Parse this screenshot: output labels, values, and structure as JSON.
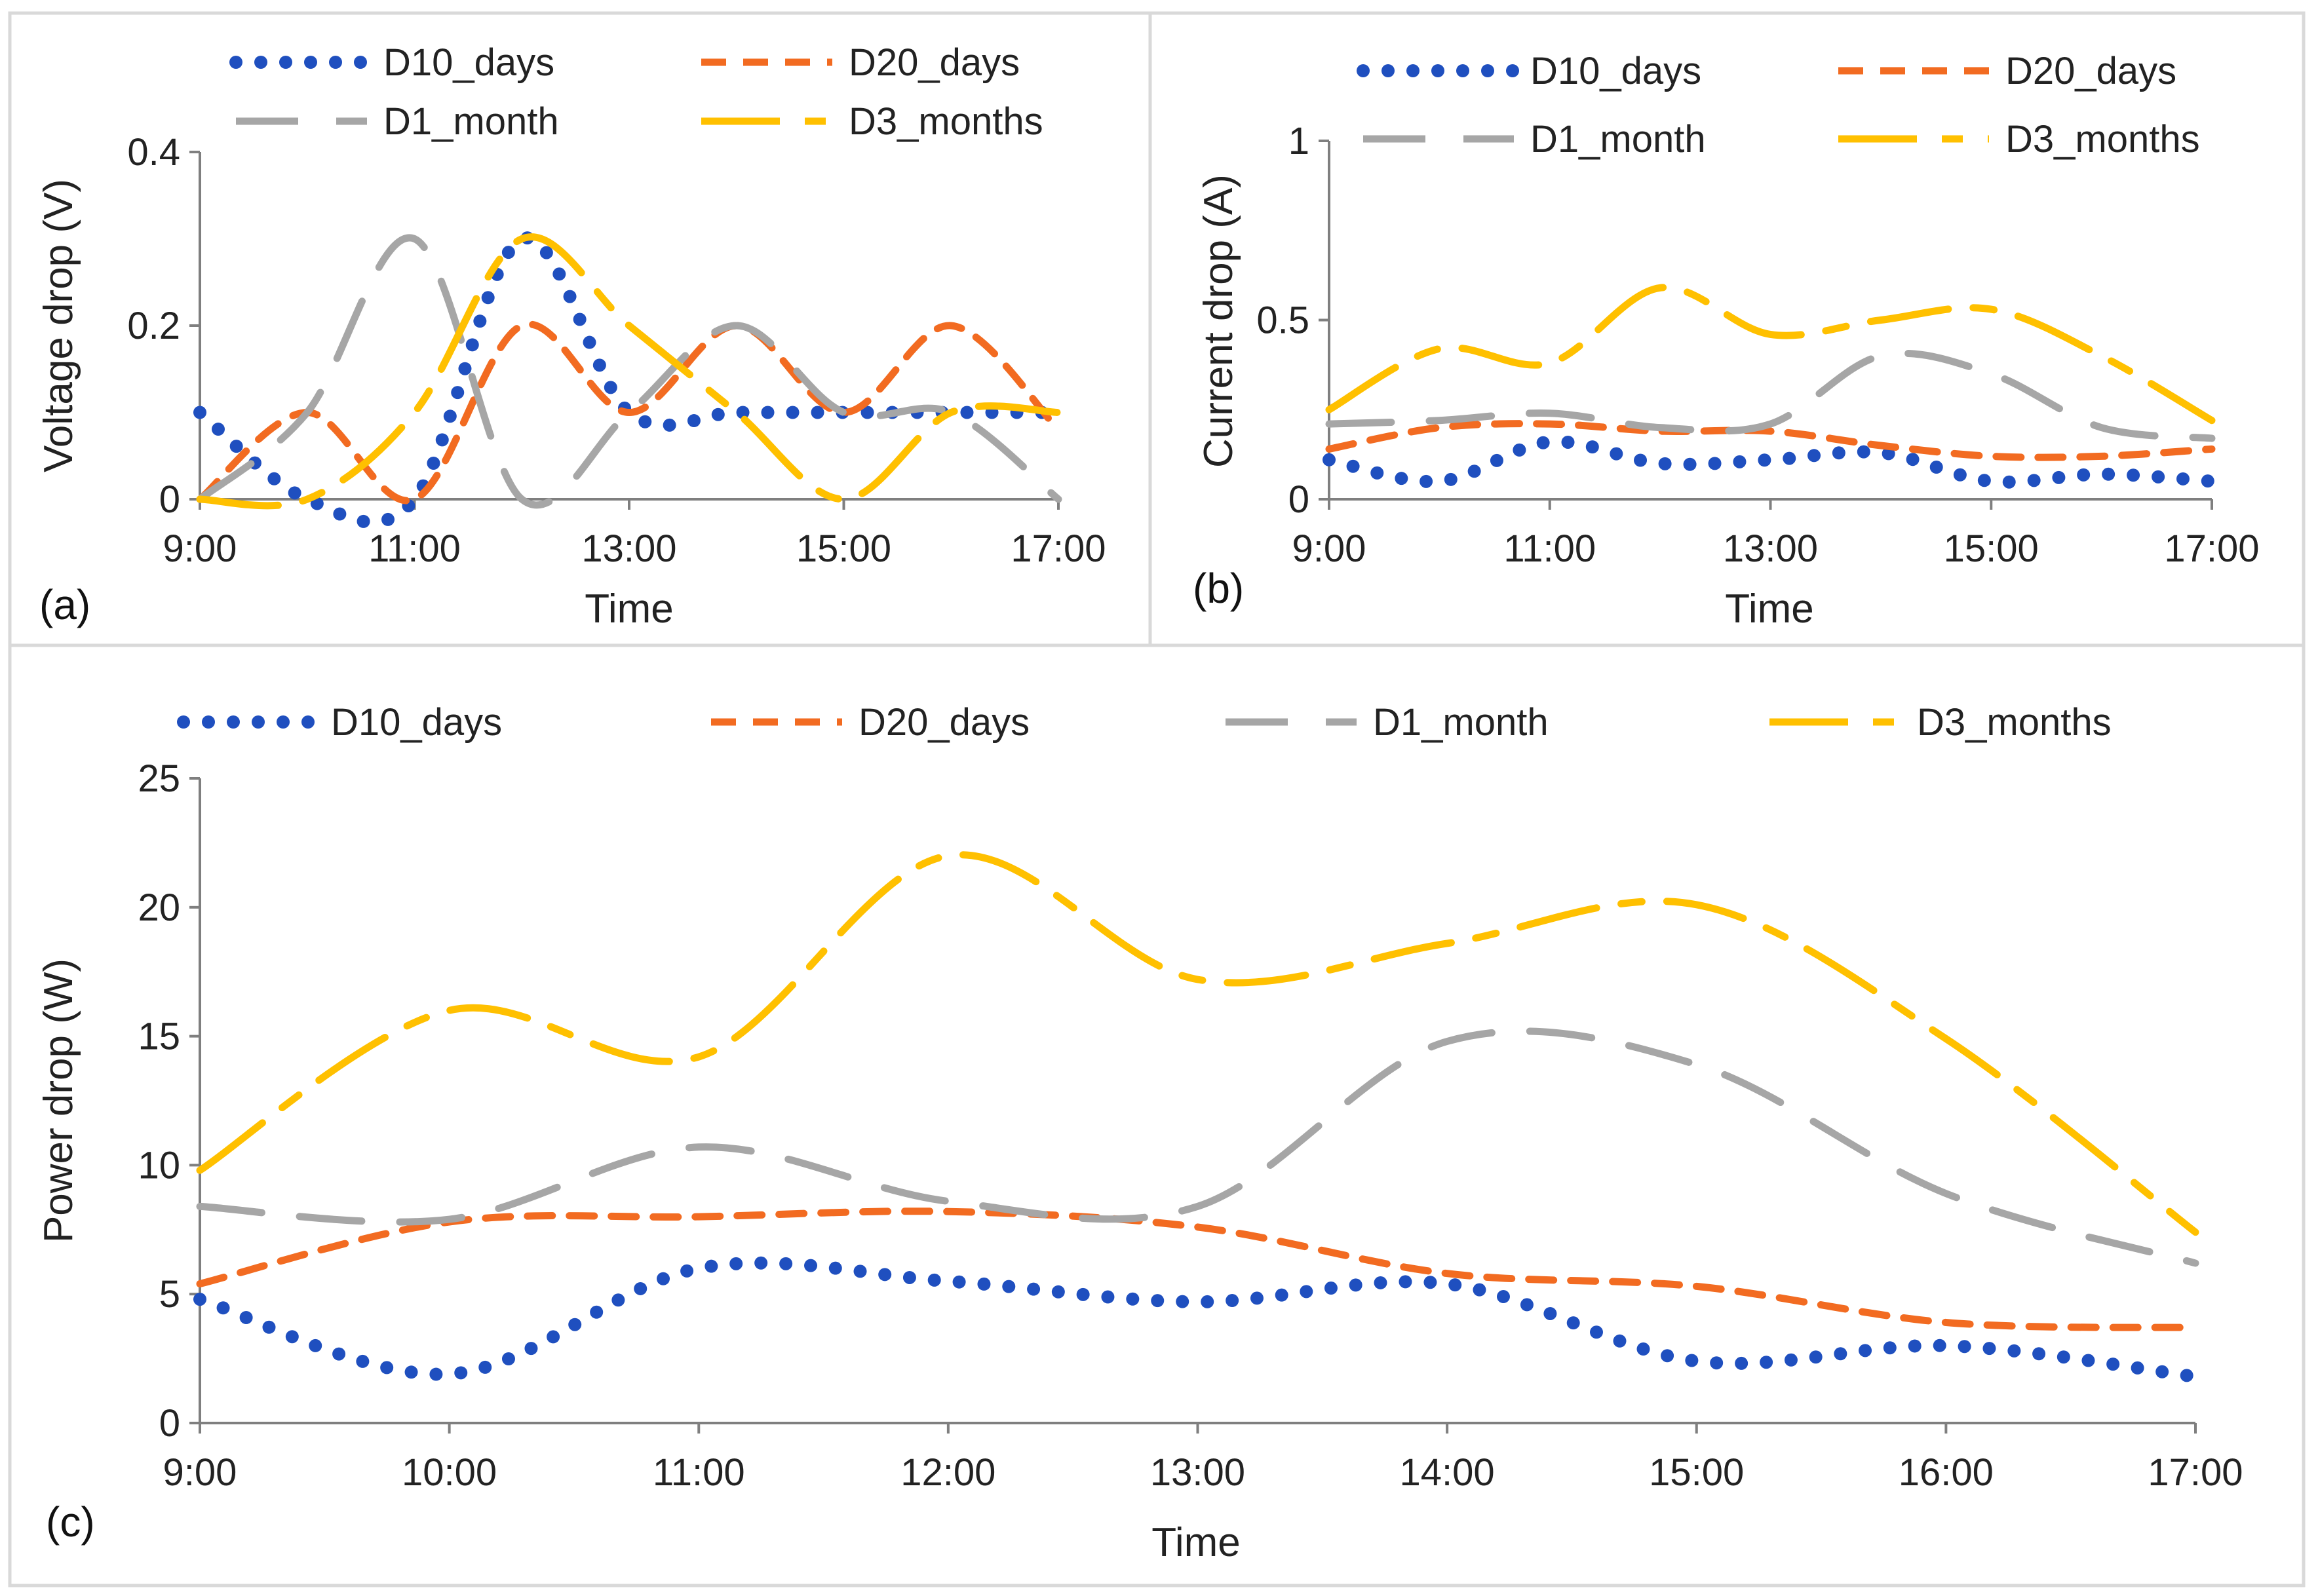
{
  "figure": {
    "panels": {
      "a": {
        "label": "(a)"
      },
      "b": {
        "label": "(b)"
      },
      "c": {
        "label": "(c)"
      }
    }
  },
  "series_styles": [
    {
      "name": "D10_days",
      "color": "#1f4fbf",
      "style": "dotted"
    },
    {
      "name": "D20_days",
      "color": "#f26b21",
      "style": "short-dash"
    },
    {
      "name": "D1_month",
      "color": "#a6a6a6",
      "style": "long-dash"
    },
    {
      "name": "D3_months",
      "color": "#ffc000",
      "style": "long-dash-dot"
    }
  ],
  "chart_data": [
    {
      "id": "a",
      "type": "line",
      "title": "",
      "xlabel": "Time",
      "ylabel": "Voltage drop (V)",
      "xlim": [
        9,
        17
      ],
      "ylim": [
        0,
        0.4
      ],
      "x_ticks": [
        9,
        11,
        13,
        15,
        17
      ],
      "x_tick_labels": [
        "9:00",
        "11:00",
        "13:00",
        "15:00",
        "17:00"
      ],
      "y_ticks": [
        0,
        0.2,
        0.4
      ],
      "y_tick_labels": [
        "0",
        "0.2",
        "0.4"
      ],
      "legend_position": "top",
      "x": [
        9,
        10,
        11,
        12,
        13,
        14,
        15,
        16,
        17
      ],
      "series": [
        {
          "name": "D10_days",
          "values": [
            0.1,
            0.0,
            0.0,
            0.3,
            0.1,
            0.1,
            0.1,
            0.1,
            0.1
          ]
        },
        {
          "name": "D20_days",
          "values": [
            0.0,
            0.1,
            0.0,
            0.2,
            0.1,
            0.2,
            0.1,
            0.2,
            0.08
          ]
        },
        {
          "name": "D1_month",
          "values": [
            0.0,
            0.1,
            0.3,
            0.0,
            0.1,
            0.2,
            0.1,
            0.1,
            0.0
          ]
        },
        {
          "name": "D3_months",
          "values": [
            0.0,
            0.0,
            0.1,
            0.3,
            0.2,
            0.1,
            0.0,
            0.1,
            0.1
          ]
        }
      ]
    },
    {
      "id": "b",
      "type": "line",
      "title": "",
      "xlabel": "Time",
      "ylabel": "Current drop (A)",
      "xlim": [
        9,
        17
      ],
      "ylim": [
        0,
        1
      ],
      "x_ticks": [
        9,
        11,
        13,
        15,
        17
      ],
      "x_tick_labels": [
        "9:00",
        "11:00",
        "13:00",
        "15:00",
        "17:00"
      ],
      "y_ticks": [
        0,
        0.5,
        1
      ],
      "y_tick_labels": [
        "0",
        "0.5",
        "1"
      ],
      "legend_position": "top",
      "x": [
        9,
        10,
        11,
        12,
        13,
        14,
        15,
        16,
        17
      ],
      "series": [
        {
          "name": "D10_days",
          "values": [
            0.11,
            0.05,
            0.16,
            0.1,
            0.11,
            0.13,
            0.05,
            0.07,
            0.05
          ]
        },
        {
          "name": "D20_days",
          "values": [
            0.14,
            0.2,
            0.21,
            0.19,
            0.19,
            0.15,
            0.12,
            0.12,
            0.14
          ]
        },
        {
          "name": "D1_month",
          "values": [
            0.21,
            0.22,
            0.24,
            0.2,
            0.21,
            0.4,
            0.35,
            0.2,
            0.17
          ]
        },
        {
          "name": "D3_months",
          "values": [
            0.25,
            0.42,
            0.38,
            0.59,
            0.46,
            0.5,
            0.53,
            0.4,
            0.22
          ]
        }
      ]
    },
    {
      "id": "c",
      "type": "line",
      "title": "",
      "xlabel": "Time",
      "ylabel": "Power drop (W)",
      "xlim": [
        9,
        17
      ],
      "ylim": [
        0,
        25
      ],
      "x_ticks": [
        9,
        10,
        11,
        12,
        13,
        14,
        15,
        16,
        17
      ],
      "x_tick_labels": [
        "9:00",
        "10:00",
        "11:00",
        "12:00",
        "13:00",
        "14:00",
        "15:00",
        "16:00",
        "17:00"
      ],
      "y_ticks": [
        0,
        5,
        10,
        15,
        20,
        25
      ],
      "y_tick_labels": [
        "0",
        "5",
        "10",
        "15",
        "20",
        "25"
      ],
      "legend_position": "top",
      "x": [
        9,
        10,
        11,
        12,
        13,
        14,
        15,
        16,
        17
      ],
      "series": [
        {
          "name": "D10_days",
          "values": [
            4.8,
            1.9,
            6.0,
            5.5,
            4.7,
            5.4,
            2.4,
            3.0,
            1.8
          ]
        },
        {
          "name": "D20_days",
          "values": [
            5.4,
            7.8,
            8.0,
            8.2,
            7.6,
            5.8,
            5.3,
            3.9,
            3.7
          ]
        },
        {
          "name": "D1_month",
          "values": [
            8.4,
            7.9,
            10.7,
            8.6,
            8.4,
            14.8,
            13.9,
            8.9,
            6.2
          ]
        },
        {
          "name": "D3_months",
          "values": [
            9.8,
            16.0,
            14.2,
            22.0,
            17.2,
            18.6,
            20.1,
            14.9,
            7.4
          ]
        }
      ]
    }
  ]
}
